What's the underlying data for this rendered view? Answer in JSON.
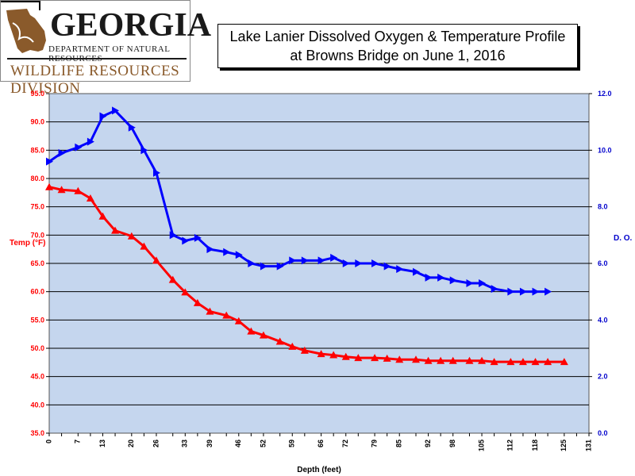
{
  "logo": {
    "org_name": "GEORGIA",
    "dept_name": "DEPARTMENT OF NATURAL RESOURCES",
    "division_name": "WILDLIFE RESOURCES DIVISION"
  },
  "chart_data": {
    "type": "line",
    "title_line1": "Lake Lanier Dissolved Oxygen & Temperature Profile",
    "title_line2": "at Browns Bridge on June 1, 2016",
    "xlabel": "Depth (feet)",
    "y_left_label": "Temp (°F)",
    "y_right_label": "D. O.",
    "x_ticks": [
      "0",
      "3",
      "7",
      "10",
      "13",
      "16",
      "20",
      "23",
      "26",
      "30",
      "33",
      "36",
      "39",
      "43",
      "46",
      "49",
      "52",
      "56",
      "59",
      "62",
      "66",
      "69",
      "72",
      "75",
      "79",
      "82",
      "85",
      "89",
      "92",
      "95",
      "98",
      "102",
      "105",
      "108",
      "112",
      "115",
      "118",
      "121",
      "125",
      "128",
      "131"
    ],
    "x_tick_labels": [
      "0",
      "",
      "7",
      "",
      "13",
      "",
      "20",
      "",
      "26",
      "",
      "33",
      "",
      "39",
      "",
      "46",
      "",
      "52",
      "",
      "59",
      "",
      "66",
      "",
      "72",
      "",
      "79",
      "",
      "85",
      "",
      "92",
      "",
      "98",
      "",
      "105",
      "",
      "112",
      "",
      "118",
      "",
      "125",
      "",
      "131"
    ],
    "y_left_ticks": [
      "35.0",
      "40.0",
      "45.0",
      "50.0",
      "55.0",
      "60.0",
      "65.0",
      "70.0",
      "75.0",
      "80.0",
      "85.0",
      "90.0",
      "95.0"
    ],
    "y_right_ticks": [
      "0.0",
      "2.0",
      "4.0",
      "6.0",
      "8.0",
      "10.0",
      "12.0"
    ],
    "ylim_left": [
      35,
      95
    ],
    "ylim_right": [
      0,
      12
    ],
    "grid": "horizontal",
    "plot_background": "#c5d6ee",
    "series": [
      {
        "axis": "right",
        "color": "#0000ff",
        "x": [
          0,
          3,
          7,
          10,
          13,
          16,
          20,
          23,
          26,
          30,
          33,
          36,
          39,
          43,
          46,
          49,
          52,
          56,
          59,
          62,
          66,
          69,
          72,
          75,
          79,
          82,
          85,
          89,
          92,
          95,
          98,
          102,
          105,
          108,
          112,
          115,
          118,
          121
        ],
        "values": [
          9.6,
          9.9,
          10.1,
          10.3,
          11.2,
          11.4,
          10.8,
          10.0,
          9.2,
          7.0,
          6.8,
          6.9,
          6.5,
          6.4,
          6.3,
          6.0,
          5.9,
          5.9,
          6.1,
          6.1,
          6.1,
          6.2,
          6.0,
          6.0,
          6.0,
          5.9,
          5.8,
          5.7,
          5.5,
          5.5,
          5.4,
          5.3,
          5.3,
          5.1,
          5.0,
          5.0,
          5.0,
          5.0
        ]
      },
      {
        "axis": "left",
        "color": "#ff0000",
        "x": [
          0,
          3,
          7,
          10,
          13,
          16,
          20,
          23,
          26,
          30,
          33,
          36,
          39,
          43,
          46,
          49,
          52,
          56,
          59,
          62,
          66,
          69,
          72,
          75,
          79,
          82,
          85,
          89,
          92,
          95,
          98,
          102,
          105,
          108,
          112,
          115,
          118,
          121,
          125
        ],
        "values": [
          78.5,
          78.0,
          77.8,
          76.5,
          73.3,
          70.8,
          69.8,
          68.0,
          65.5,
          62.1,
          59.9,
          58.0,
          56.5,
          55.8,
          54.8,
          53.0,
          52.3,
          51.2,
          50.3,
          49.6,
          49.0,
          48.8,
          48.5,
          48.3,
          48.3,
          48.2,
          48.0,
          48.0,
          47.8,
          47.8,
          47.8,
          47.8,
          47.8,
          47.6,
          47.6,
          47.6,
          47.6,
          47.6,
          47.6
        ]
      }
    ]
  }
}
